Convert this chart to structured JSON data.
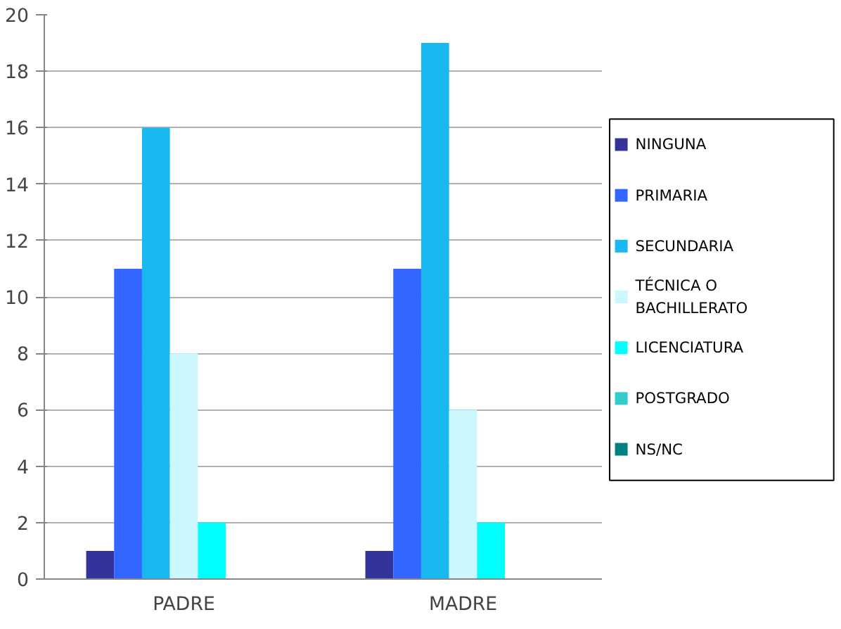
{
  "chart_data": {
    "type": "bar",
    "categories": [
      "PADRE",
      "MADRE"
    ],
    "series": [
      {
        "name": "NINGUNA",
        "color": "#333399",
        "values": [
          1,
          1
        ]
      },
      {
        "name": "PRIMARIA",
        "color": "#3366ff",
        "values": [
          11,
          11
        ]
      },
      {
        "name": "SECUNDARIA",
        "color": "#1ab8f0",
        "values": [
          16,
          19
        ]
      },
      {
        "name": "TÉCNICA O BACHILLERATO",
        "color": "#ccf7ff",
        "values": [
          8,
          6
        ]
      },
      {
        "name": "LICENCIATURA",
        "color": "#00ffff",
        "values": [
          2,
          2
        ]
      },
      {
        "name": "POSTGRADO",
        "color": "#33cccc",
        "values": [
          0,
          0
        ]
      },
      {
        "name": "NS/NC",
        "color": "#008080",
        "values": [
          0,
          0
        ]
      }
    ],
    "ylim": [
      0,
      20
    ],
    "yticks": [
      0,
      2,
      4,
      6,
      8,
      10,
      12,
      14,
      16,
      18,
      20
    ],
    "grid": "y",
    "legend": "right"
  }
}
